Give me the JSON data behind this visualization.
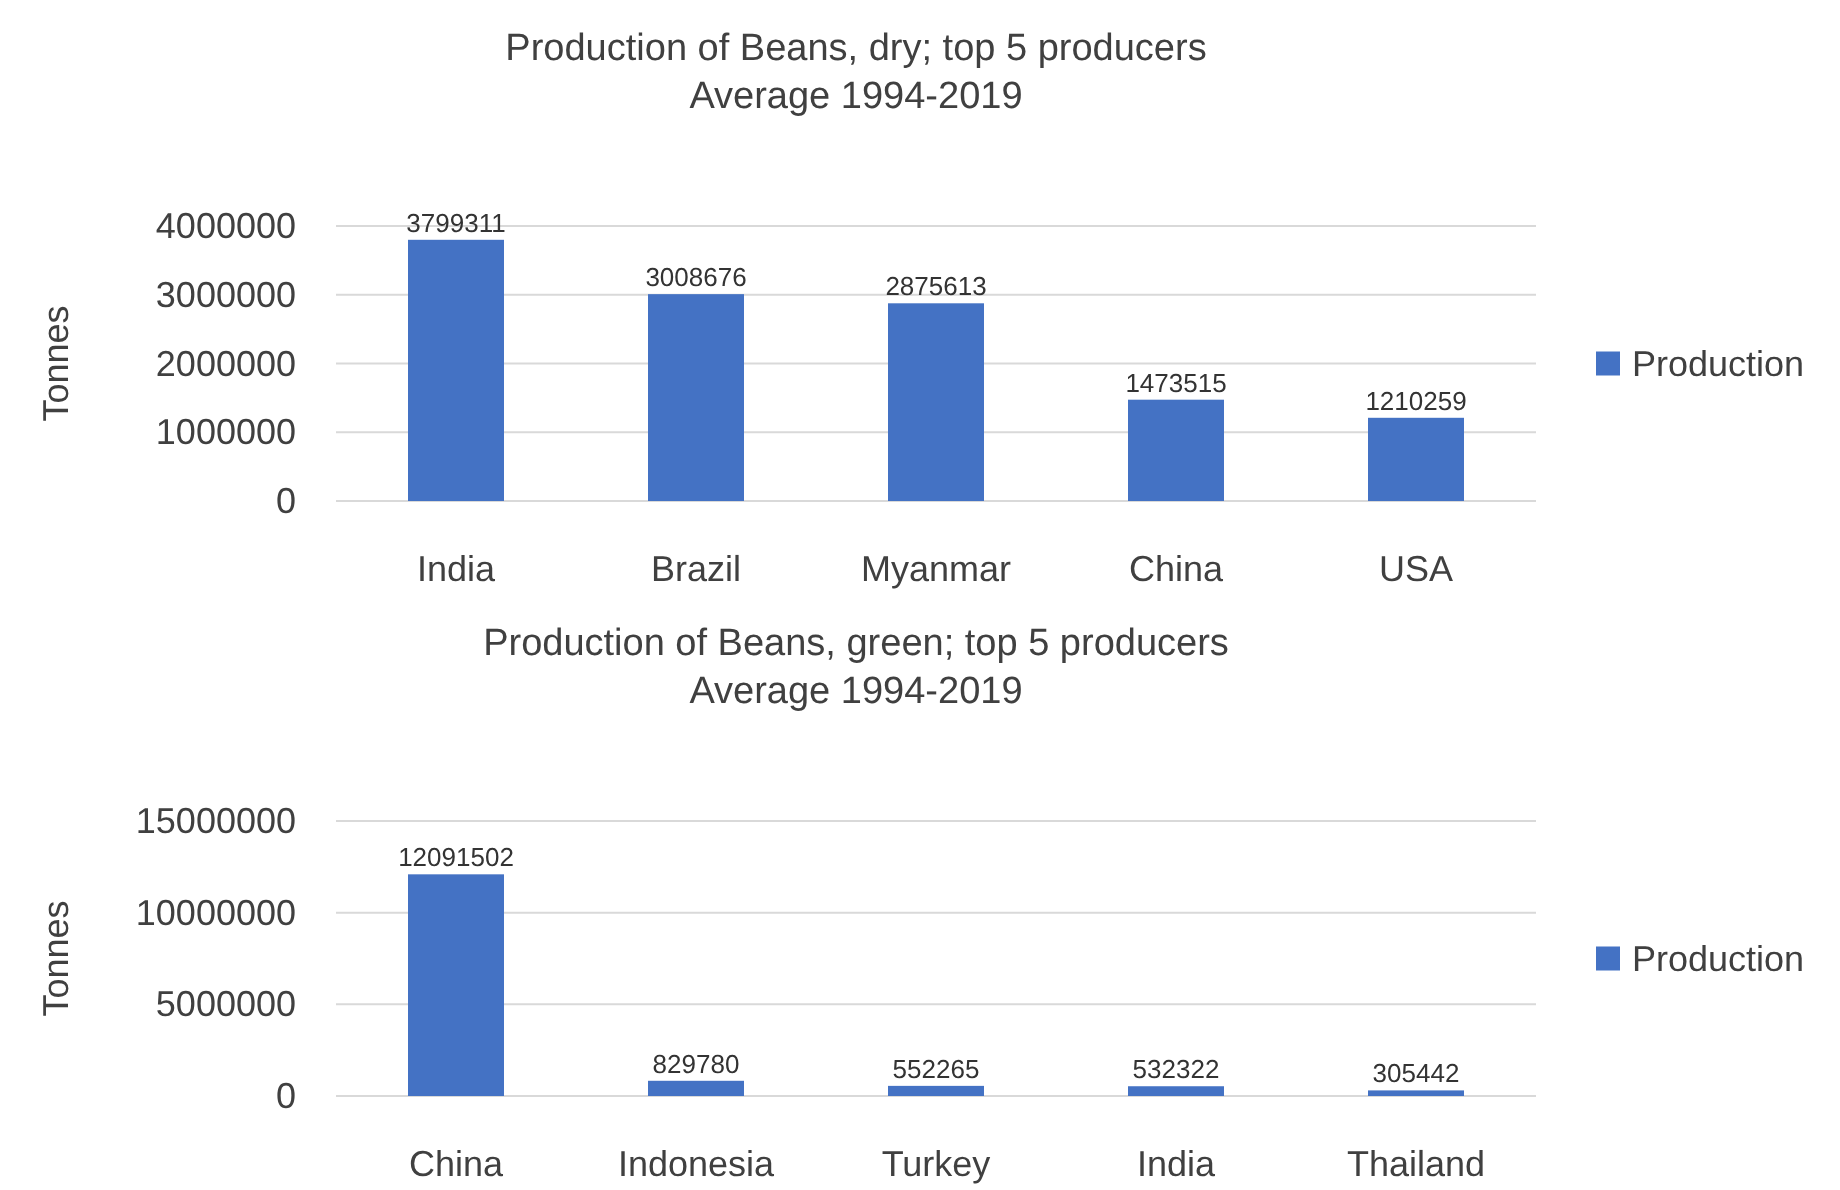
{
  "chart_data": [
    {
      "type": "bar",
      "title": "Production of Beans, dry; top 5 producers",
      "subtitle": "Average 1994-2019",
      "ylabel": "Tonnes",
      "categories": [
        "India",
        "Brazil",
        "Myanmar",
        "China",
        "USA"
      ],
      "series": [
        {
          "name": "Production",
          "color": "#4472c4",
          "values": [
            3799311,
            3008676,
            2875613,
            1473515,
            1210259
          ]
        }
      ],
      "ylim": [
        0,
        4000000
      ],
      "yticks": [
        0,
        1000000,
        2000000,
        3000000,
        4000000
      ],
      "grid": "y",
      "legend": "right",
      "data_labels": true
    },
    {
      "type": "bar",
      "title": "Production of Beans, green; top 5 producers",
      "subtitle": "Average 1994-2019",
      "ylabel": "Tonnes",
      "categories": [
        "China",
        "Indonesia",
        "Turkey",
        "India",
        "Thailand"
      ],
      "series": [
        {
          "name": "Production",
          "color": "#4472c4",
          "values": [
            12091502,
            829780,
            552265,
            532322,
            305442
          ]
        }
      ],
      "ylim": [
        0,
        15000000
      ],
      "yticks": [
        0,
        5000000,
        10000000,
        15000000
      ],
      "grid": "y",
      "legend": "right",
      "data_labels": true
    }
  ]
}
